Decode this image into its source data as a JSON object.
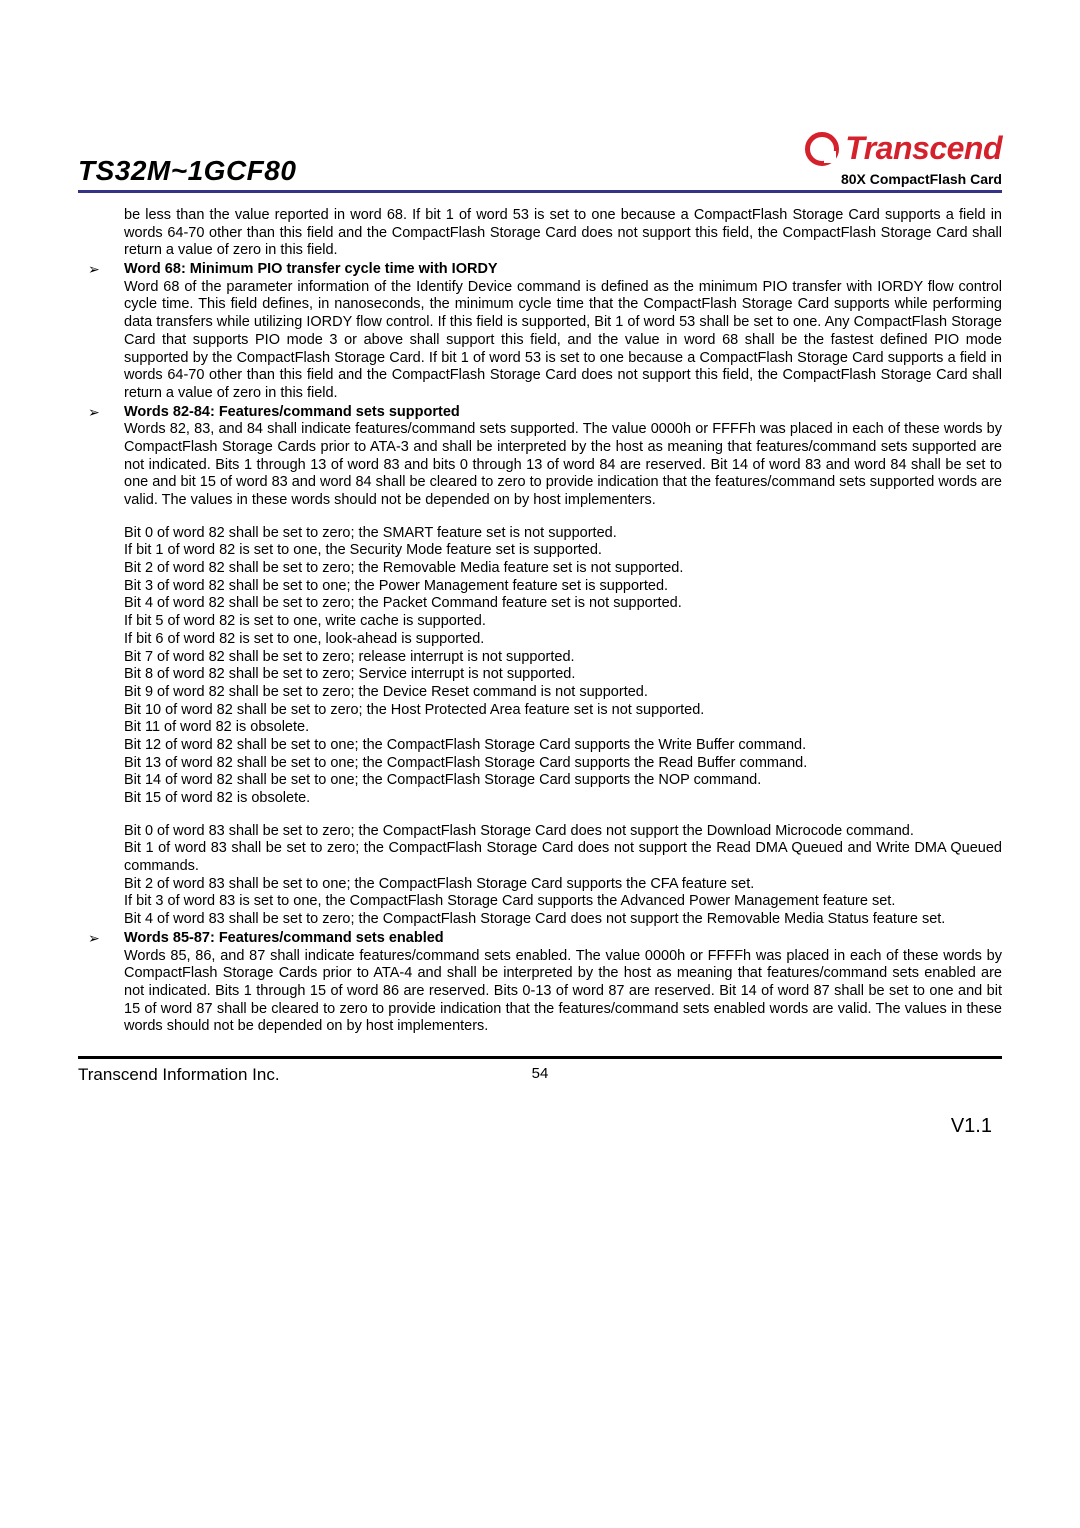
{
  "header": {
    "product": "TS32M~1GCF80",
    "brand": "Transcend",
    "subtitle": "80X CompactFlash Card"
  },
  "intro_continuation": "be less than the value reported in word 68. If bit 1 of word 53 is set to one because a CompactFlash Storage Card supports a field in words 64-70 other than this field and the CompactFlash Storage Card does not support this field, the CompactFlash Storage Card shall return a value of zero in this field.",
  "sections": {
    "word68": {
      "title": "Word 68: Minimum PIO transfer cycle time with IORDY",
      "body": "Word 68 of the parameter information of the Identify Device command is defined as the minimum PIO transfer with IORDY flow control cycle time. This field defines, in nanoseconds, the minimum cycle time that the CompactFlash Storage Card supports while performing data transfers while utilizing IORDY flow control. If this field is supported, Bit 1 of word 53 shall be set to one. Any CompactFlash Storage Card that supports PIO mode 3 or above shall support this field, and the value in word 68 shall be the fastest defined PIO mode supported by the CompactFlash Storage Card. If bit 1 of word 53 is set to one because a CompactFlash Storage Card supports a field in words 64-70 other than this field and the CompactFlash Storage Card does not support this field, the CompactFlash Storage Card shall return a value of zero in this field."
    },
    "words82_84": {
      "title": "Words 82-84: Features/command sets supported",
      "body": "Words 82, 83, and 84 shall indicate features/command sets supported. The value 0000h or FFFFh was placed in each of these words by CompactFlash Storage Cards prior to ATA-3 and shall be interpreted by the host as meaning that features/command sets supported are not indicated. Bits 1 through 13 of word 83 and bits 0 through 13 of word 84 are reserved. Bit 14 of word 83 and word 84 shall be set to one and bit 15 of word 83 and word 84 shall be cleared to zero to provide indication that the features/command sets supported words are valid. The values in these words should not be depended on by host implementers.",
      "bits82": [
        "Bit 0 of word 82 shall be set to zero; the SMART feature set is not supported.",
        "If bit 1 of word 82 is set to one, the Security Mode feature set is supported.",
        "Bit 2 of word 82 shall be set to zero; the Removable Media feature set is not supported.",
        "Bit 3 of word 82 shall be set to one; the Power Management feature set is supported.",
        "Bit 4 of word 82 shall be set to zero; the Packet Command feature set is not supported.",
        "If bit 5 of word 82 is set to one, write cache is supported.",
        "If bit 6 of word 82 is set to one, look-ahead is supported.",
        "Bit 7 of word 82 shall be set to zero; release interrupt is not supported.",
        "Bit 8 of word 82 shall be set to zero; Service interrupt is not supported.",
        "Bit 9 of word 82 shall be set to zero; the Device Reset command is not supported.",
        "Bit 10 of word 82 shall be set to zero; the Host Protected Area feature set is not supported.",
        "Bit 11 of word 82 is obsolete.",
        "Bit 12 of word 82 shall be set to one; the CompactFlash Storage Card supports the Write Buffer command.",
        "Bit 13 of word 82 shall be set to one; the CompactFlash Storage Card supports the Read Buffer command.",
        "Bit 14 of word 82 shall be set to one; the CompactFlash Storage Card supports the NOP command.",
        "Bit 15 of word 82 is obsolete."
      ],
      "bits83": [
        "Bit 0 of word 83 shall be set to zero; the CompactFlash Storage Card does not support the Download Microcode command.",
        "Bit 1 of word 83 shall be set to zero; the CompactFlash Storage Card does not support the Read DMA Queued and Write DMA Queued commands.",
        "Bit 2 of word 83 shall be set to one; the CompactFlash Storage Card supports the CFA feature set.",
        "If bit 3 of word 83 is set to one, the CompactFlash Storage Card supports the Advanced Power Management feature set.",
        "Bit 4 of word 83 shall be set to zero; the CompactFlash Storage Card does not support the Removable Media Status feature set."
      ]
    },
    "words85_87": {
      "title": "Words 85-87: Features/command sets enabled",
      "body": "Words 85, 86, and 87 shall indicate features/command sets enabled. The value 0000h or FFFFh was placed in each of these words by CompactFlash Storage Cards prior to ATA-4 and shall be interpreted by the host as meaning that features/command sets enabled are not indicated. Bits 1 through 15 of word 86 are reserved. Bits 0-13 of word 87 are reserved. Bit 14 of word 87 shall be set to one and bit 15 of word 87 shall be cleared to zero to provide indication that the features/command sets enabled words are valid. The values in these words should not be depended on by host implementers."
    }
  },
  "footer": {
    "company": "Transcend Information Inc.",
    "page_number": "54",
    "version": "V1.1"
  },
  "style": {
    "accent_color": "#d4212b",
    "divider_color": "#333388",
    "text_color": "#000000",
    "background_color": "#ffffff",
    "body_fontsize": 14.5,
    "title_fontsize": 28,
    "logo_fontsize": 32
  }
}
